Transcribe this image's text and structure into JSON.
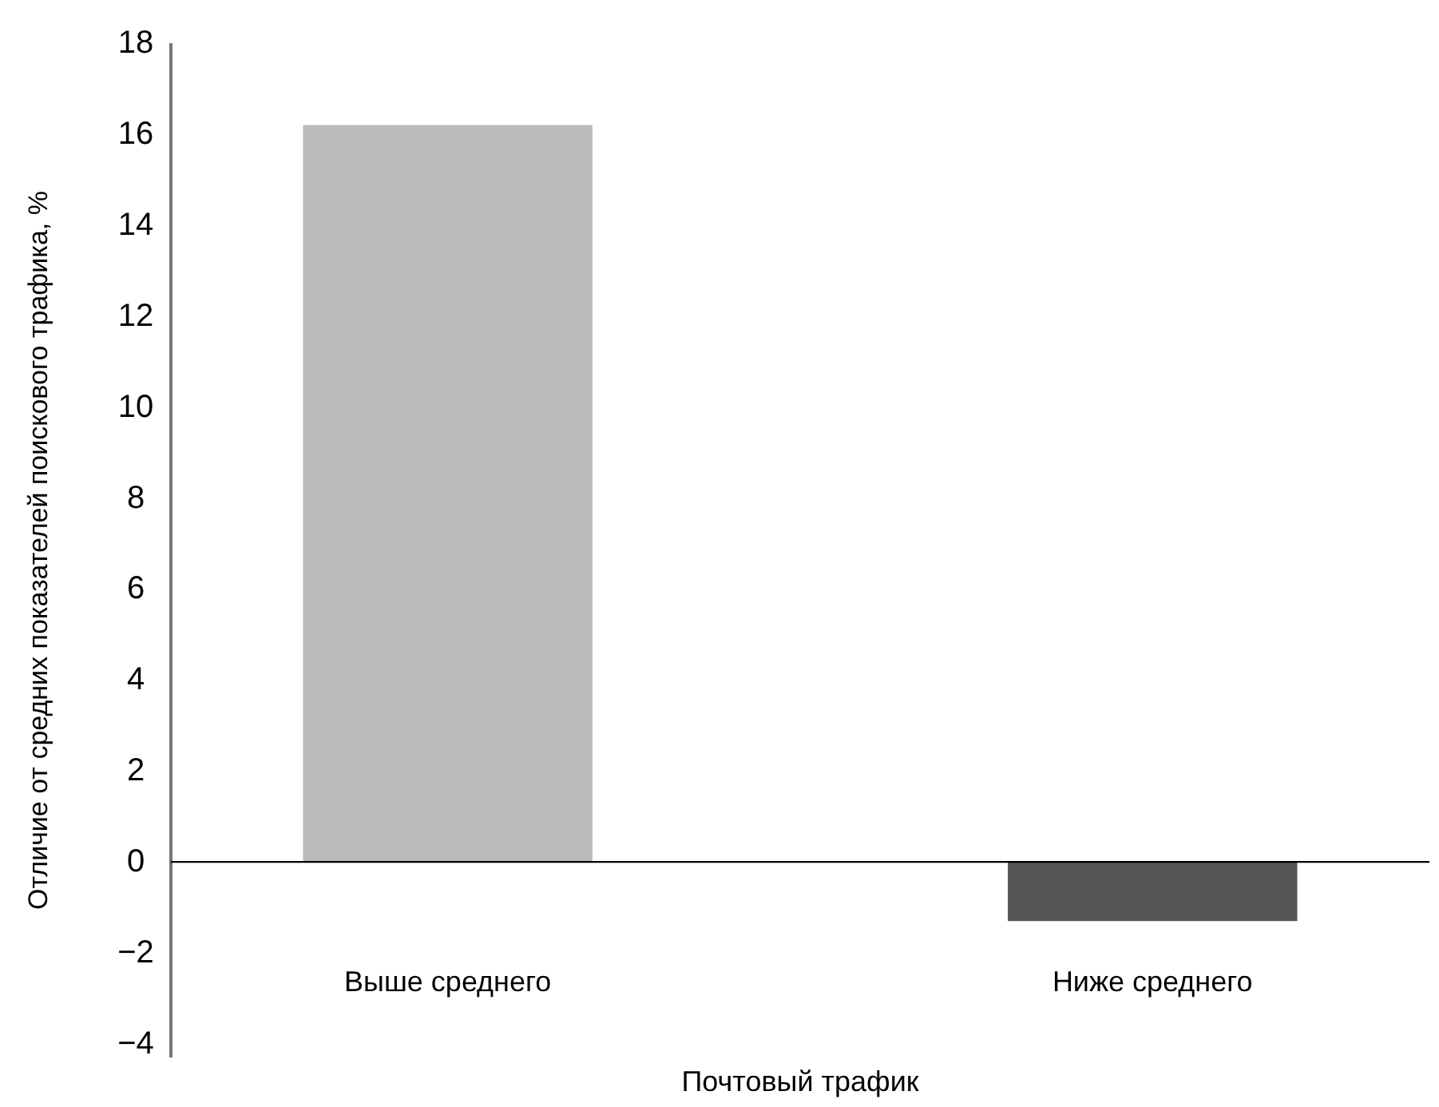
{
  "chart_data": {
    "type": "bar",
    "xlabel": "Почтовый трафик",
    "ylabel": "Отличие от средних показателей поискового трафика, %",
    "categories": [
      "Выше среднего",
      "Ниже среднего"
    ],
    "values": [
      16.2,
      -1.3
    ],
    "colors": [
      "#bbbbbb",
      "#555555"
    ],
    "ylim": [
      -4.3,
      18
    ],
    "yticks": [
      18,
      16,
      14,
      12,
      10,
      8,
      6,
      4,
      2,
      0,
      {
        "value": -2,
        "label": "−2"
      },
      {
        "value": -4,
        "label": "−4"
      }
    ]
  }
}
